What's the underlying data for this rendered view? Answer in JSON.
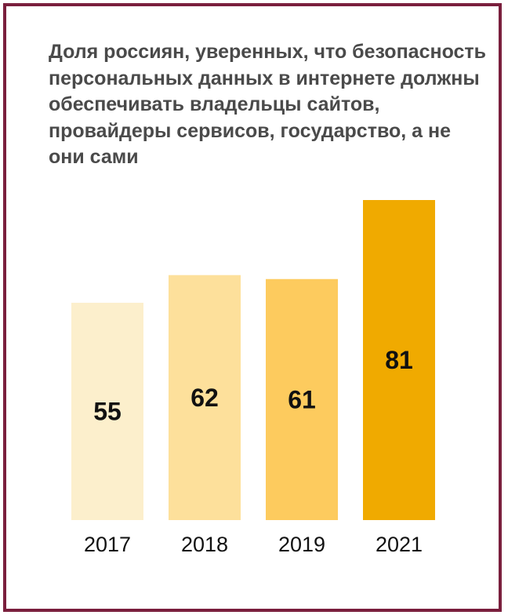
{
  "chart_data": {
    "type": "bar",
    "title": "Доля россиян, уверенных, что безопасность персональных данных в интернете должны обеспечивать владельцы сайтов, провайдеры сервисов, государство, а не они сами",
    "categories": [
      "2017",
      "2018",
      "2019",
      "2021"
    ],
    "values": [
      55,
      62,
      61,
      81
    ],
    "bar_colors": [
      "#fcefcc",
      "#fde09b",
      "#fdcb5e",
      "#f0aa00"
    ],
    "xlabel": "",
    "ylabel": "",
    "ylim": [
      0,
      81
    ],
    "grid": false,
    "data_labels": true
  },
  "colors": {
    "frame": "#7a1f3d",
    "title": "#4a4a4a",
    "text": "#111111"
  }
}
